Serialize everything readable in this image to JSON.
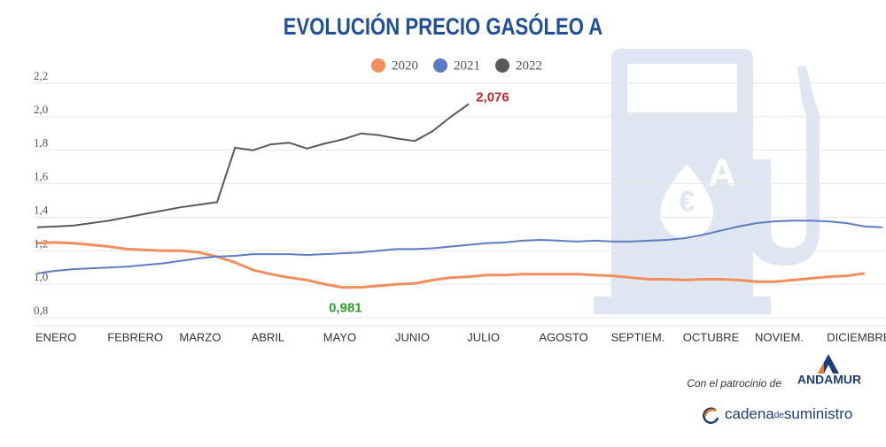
{
  "chart_data": {
    "type": "line",
    "title": "EVOLUCIÓN PRECIO GASÓLEO A",
    "categories": [
      "ENERO",
      null,
      null,
      null,
      "FEBRERO",
      null,
      null,
      null,
      "MARZO",
      null,
      null,
      null,
      "ABRIL",
      null,
      null,
      null,
      "MAYO",
      null,
      null,
      null,
      "JUNIO",
      null,
      null,
      null,
      "JULIO",
      null,
      null,
      null,
      "AGOSTO",
      null,
      null,
      null,
      "SEPTIEM.",
      null,
      null,
      null,
      "OCTUBRE",
      null,
      null,
      null,
      "NOVIEM.",
      null,
      null,
      null,
      "DICIEMBRE",
      null,
      null,
      null
    ],
    "series": [
      {
        "name": "2020",
        "color": "#f28e5c",
        "values": [
          1.245,
          1.25,
          1.245,
          1.235,
          1.225,
          1.21,
          1.205,
          1.2,
          1.2,
          1.19,
          1.165,
          1.13,
          1.085,
          1.06,
          1.04,
          1.025,
          1.0,
          0.981,
          0.982,
          0.99,
          1.0,
          1.005,
          1.025,
          1.04,
          1.045,
          1.055,
          1.055,
          1.06,
          1.06,
          1.06,
          1.06,
          1.055,
          1.05,
          1.04,
          1.03,
          1.03,
          1.025,
          1.03,
          1.03,
          1.025,
          1.015,
          1.015,
          1.025,
          1.035,
          1.045,
          1.05,
          1.065,
          null
        ],
        "value_labels": [
          null,
          null,
          null,
          null,
          null,
          null,
          null,
          null,
          null,
          null,
          null,
          null,
          null,
          null,
          null,
          null,
          null,
          "0,981",
          null,
          null,
          null,
          null,
          null,
          null,
          null,
          null,
          null,
          null,
          null,
          null,
          null,
          null,
          null,
          null,
          null,
          null,
          null,
          null,
          null,
          null,
          null,
          null,
          null,
          null,
          null,
          null,
          null,
          null
        ]
      },
      {
        "name": "2021",
        "color": "#5b7bc4",
        "values": [
          1.065,
          1.08,
          1.09,
          1.095,
          1.1,
          1.105,
          1.115,
          1.125,
          1.14,
          1.155,
          1.165,
          1.17,
          1.18,
          1.18,
          1.18,
          1.175,
          1.18,
          1.185,
          1.19,
          1.2,
          1.21,
          1.21,
          1.215,
          1.225,
          1.235,
          1.245,
          1.25,
          1.26,
          1.265,
          1.26,
          1.255,
          1.26,
          1.255,
          1.255,
          1.26,
          1.265,
          1.275,
          1.295,
          1.32,
          1.345,
          1.365,
          1.375,
          1.38,
          1.38,
          1.375,
          1.365,
          1.345,
          1.34
        ]
      },
      {
        "name": "2022",
        "color": "#595959",
        "values": [
          1.34,
          1.345,
          1.35,
          1.365,
          1.38,
          1.4,
          1.42,
          1.44,
          1.46,
          1.475,
          1.49,
          1.815,
          1.8,
          1.835,
          1.845,
          1.81,
          1.84,
          1.865,
          1.9,
          1.89,
          1.87,
          1.855,
          1.915,
          2.0,
          2.076,
          null,
          null,
          null,
          null,
          null,
          null,
          null,
          null,
          null,
          null,
          null,
          null,
          null,
          null,
          null,
          null,
          null,
          null,
          null,
          null,
          null,
          null,
          null
        ],
        "value_labels": [
          null,
          null,
          null,
          null,
          null,
          null,
          null,
          null,
          null,
          null,
          null,
          null,
          null,
          null,
          null,
          null,
          null,
          null,
          null,
          null,
          null,
          null,
          null,
          null,
          "2,076",
          null,
          null,
          null,
          null,
          null,
          null,
          null,
          null,
          null,
          null,
          null,
          null,
          null,
          null,
          null,
          null,
          null,
          null,
          null,
          null,
          null,
          null,
          null
        ]
      }
    ],
    "ylim": [
      0.8,
      2.2
    ],
    "yticks": [
      {
        "value": 0.8,
        "label": "0,8"
      },
      {
        "value": 1.0,
        "label": "1,0"
      },
      {
        "value": 1.2,
        "label": "1,2"
      },
      {
        "value": 1.4,
        "label": "1,4"
      },
      {
        "value": 1.6,
        "label": "1,6"
      },
      {
        "value": 1.8,
        "label": "1,8"
      },
      {
        "value": 2.0,
        "label": "2,0"
      },
      {
        "value": 2.2,
        "label": "2,2"
      }
    ],
    "grid": true
  },
  "footer": {
    "sponsor_text": "Con el patrocinio de",
    "sponsor": "ANDAMUR",
    "logo_a": "cadena",
    "logo_b": "de",
    "logo_c": "suministro"
  }
}
